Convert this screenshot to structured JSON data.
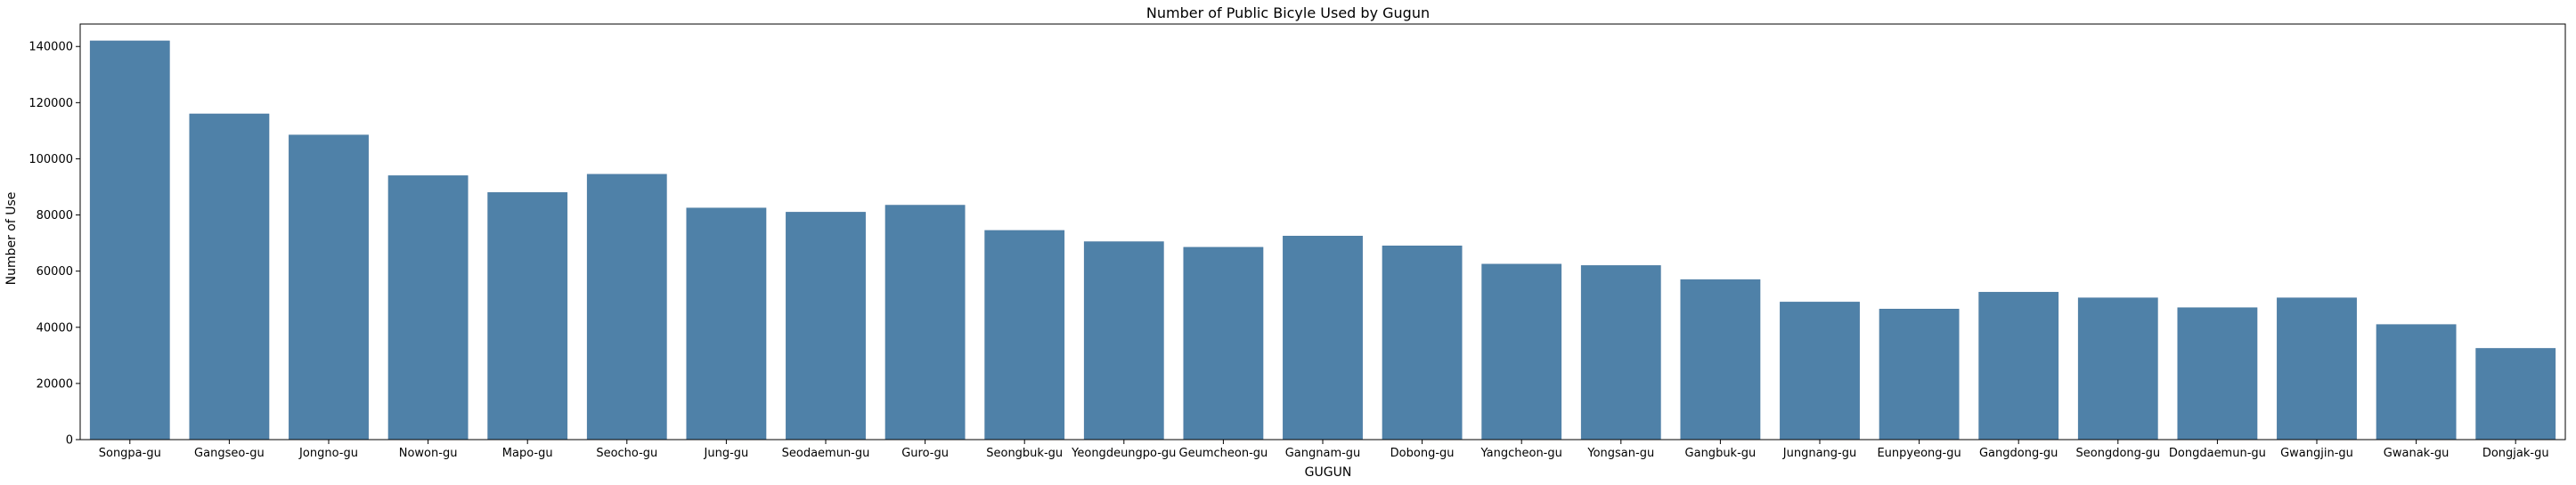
{
  "chart_data": {
    "type": "bar",
    "title": "Number of Public Bicyle Used by Gugun",
    "xlabel": "GUGUN",
    "ylabel": "Number of Use",
    "ylim": [
      0,
      148000
    ],
    "yticks": [
      0,
      20000,
      40000,
      60000,
      80000,
      100000,
      120000,
      140000
    ],
    "bar_color": "#4f81a8",
    "grid": false,
    "categories": [
      "Songpa-gu",
      "Gangseo-gu",
      "Jongno-gu",
      "Nowon-gu",
      "Mapo-gu",
      "Seocho-gu",
      "Jung-gu",
      "Seodaemun-gu",
      "Guro-gu",
      "Seongbuk-gu",
      "Yeongdeungpo-gu",
      "Geumcheon-gu",
      "Gangnam-gu",
      "Dobong-gu",
      "Yangcheon-gu",
      "Yongsan-gu",
      "Gangbuk-gu",
      "Jungnang-gu",
      "Eunpyeong-gu",
      "Gangdong-gu",
      "Seongdong-gu",
      "Dongdaemun-gu",
      "Gwangjin-gu",
      "Gwanak-gu",
      "Dongjak-gu"
    ],
    "values": [
      142000,
      116000,
      108500,
      94000,
      88000,
      94500,
      82500,
      81000,
      83500,
      74500,
      70500,
      68500,
      72500,
      69000,
      62500,
      62000,
      57000,
      49000,
      46500,
      52500,
      50500,
      47000,
      50500,
      41000,
      32500
    ]
  }
}
